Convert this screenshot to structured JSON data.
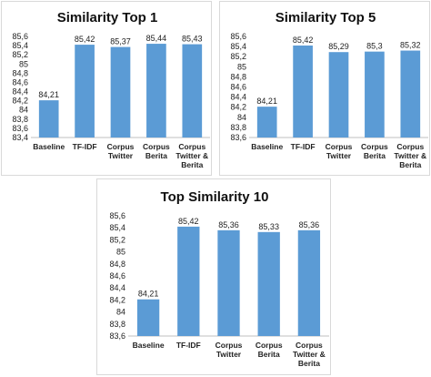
{
  "chart_data": [
    {
      "type": "bar",
      "title": "Similarity Top 1",
      "categories": [
        [
          "Baseline"
        ],
        [
          "TF-IDF"
        ],
        [
          "Corpus",
          "Twitter"
        ],
        [
          "Corpus",
          "Berita"
        ],
        [
          "Corpus",
          "Twitter &",
          "Berita"
        ]
      ],
      "values": [
        84.21,
        85.42,
        85.37,
        85.44,
        85.43
      ],
      "data_labels": [
        "84,21",
        "85,42",
        "85,37",
        "85,44",
        "85,43"
      ],
      "ylim": [
        83.4,
        85.6
      ],
      "yticks": [
        "83,4",
        "83,6",
        "83,8",
        "84",
        "84,2",
        "84,4",
        "84,6",
        "84,8",
        "85",
        "85,2",
        "85,4",
        "85,6"
      ],
      "xlabel": "",
      "ylabel": "",
      "grid": false,
      "legend": "none",
      "bar_color": "#5b9bd5"
    },
    {
      "type": "bar",
      "title": "Similarity Top 5",
      "categories": [
        [
          "Baseline"
        ],
        [
          "TF-IDF"
        ],
        [
          "Corpus",
          "Twitter"
        ],
        [
          "Corpus",
          "Berita"
        ],
        [
          "Corpus",
          "Twitter &",
          "Berita"
        ]
      ],
      "values": [
        84.21,
        85.42,
        85.29,
        85.3,
        85.32
      ],
      "data_labels": [
        "84,21",
        "85,42",
        "85,29",
        "85,3",
        "85,32"
      ],
      "ylim": [
        83.6,
        85.6
      ],
      "yticks": [
        "83,6",
        "83,8",
        "84",
        "84,2",
        "84,4",
        "84,6",
        "84,8",
        "85",
        "85,2",
        "85,4",
        "85,6"
      ],
      "xlabel": "",
      "ylabel": "",
      "grid": false,
      "legend": "none",
      "bar_color": "#5b9bd5"
    },
    {
      "type": "bar",
      "title": "Top Similarity 10",
      "categories": [
        [
          "Baseline"
        ],
        [
          "TF-IDF"
        ],
        [
          "Corpus",
          "Twitter"
        ],
        [
          "Corpus",
          "Berita"
        ],
        [
          "Corpus",
          "Twitter &",
          "Berita"
        ]
      ],
      "values": [
        84.21,
        85.42,
        85.36,
        85.33,
        85.36
      ],
      "data_labels": [
        "84,21",
        "85,42",
        "85,36",
        "85,33",
        "85,36"
      ],
      "ylim": [
        83.6,
        85.6
      ],
      "yticks": [
        "83,6",
        "83,8",
        "84",
        "84,2",
        "84,4",
        "84,6",
        "84,8",
        "85",
        "85,2",
        "85,4",
        "85,6"
      ],
      "xlabel": "",
      "ylabel": "",
      "grid": false,
      "legend": "none",
      "bar_color": "#5b9bd5"
    }
  ]
}
